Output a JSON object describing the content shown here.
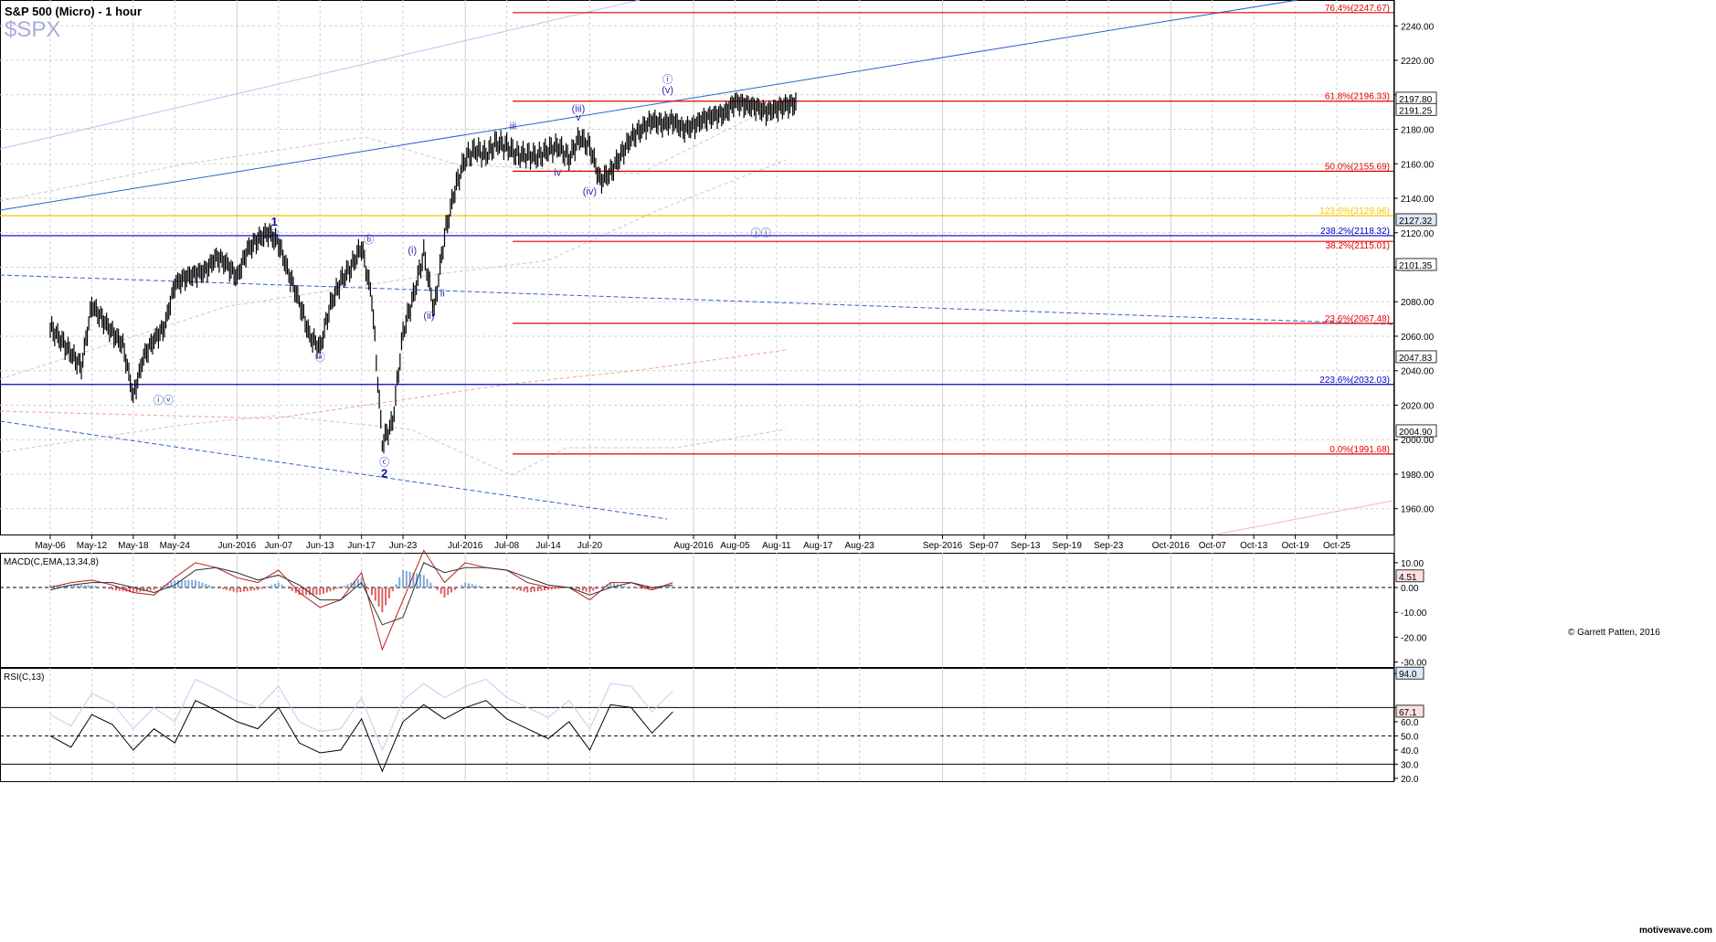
{
  "header": {
    "title": "S&P 500 (Micro) - 1 hour",
    "symbol": "$SPX"
  },
  "footer": {
    "copyright": "© Garrett Patten, 2016",
    "watermark": "motivewave.com"
  },
  "colors": {
    "grid": "#d0d0d0",
    "candle": "#000000",
    "fib_red": "#e00000",
    "fib_blue": "#0000cc",
    "fib_yellow": "#f0c800",
    "wave_label": "#2a2aaa",
    "trend_blue": "#3060d0",
    "macd_hist_pos": "#7fa8d8",
    "macd_hist_neg": "#e06060",
    "rsi_line": "#000000",
    "rsi_band": "#c8c8f0"
  },
  "chart_data": [
    {
      "type": "line",
      "panel": "price",
      "ylim": [
        1945,
        2255
      ],
      "y_ticks": [
        1960,
        1980,
        2000,
        2020,
        2040,
        2060,
        2080,
        2100,
        2120,
        2140,
        2160,
        2180,
        2200,
        2220,
        2240
      ],
      "y_tick_labels": [
        "1960.00",
        "1980.00",
        "2000.00",
        "2020.00",
        "2040.00",
        "2060.00",
        "2080.00",
        "2100.00",
        "2120.00",
        "2140.00",
        "2160.00",
        "2180.00",
        "2200.00",
        "2220.00",
        "2240.00"
      ],
      "x_dates": [
        "May-06",
        "May-12",
        "May-18",
        "May-24",
        "Jun-2016",
        "Jun-07",
        "Jun-13",
        "Jun-17",
        "Jun-23",
        "Jul-2016",
        "Jul-08",
        "Jul-14",
        "Jul-20",
        "Aug-2016",
        "Aug-05",
        "Aug-11",
        "Aug-17",
        "Aug-23",
        "Sep-2016",
        "Sep-07",
        "Sep-13",
        "Sep-19",
        "Sep-23",
        "Oct-2016",
        "Oct-07",
        "Oct-13",
        "Oct-19",
        "Oct-25"
      ],
      "x_day_index": [
        0,
        4,
        8,
        12,
        18,
        22,
        26,
        30,
        34,
        40,
        44,
        48,
        52,
        62,
        66,
        70,
        74,
        78,
        86,
        90,
        94,
        98,
        102,
        108,
        112,
        116,
        120,
        124
      ],
      "series": [
        {
          "x": [
            0,
            1,
            2,
            3,
            4,
            5,
            6,
            7,
            8,
            9,
            10,
            11,
            12,
            13,
            14,
            15,
            16,
            17,
            18,
            19,
            20,
            21,
            22,
            23,
            24,
            25,
            26,
            27,
            28,
            29,
            30,
            31,
            32,
            33,
            34,
            35,
            36,
            37,
            38,
            39,
            40,
            41,
            42,
            43,
            44,
            45,
            46,
            47,
            48,
            49,
            50,
            51,
            52,
            53,
            54,
            55,
            56,
            57,
            58,
            59,
            60,
            61,
            62,
            63,
            64,
            65,
            66,
            67,
            68,
            69,
            70,
            71,
            72
          ],
          "y": [
            2065,
            2058,
            2050,
            2042,
            2078,
            2070,
            2062,
            2055,
            2025,
            2048,
            2058,
            2065,
            2090,
            2094,
            2096,
            2098,
            2106,
            2102,
            2094,
            2110,
            2116,
            2120,
            2114,
            2096,
            2080,
            2060,
            2053,
            2078,
            2092,
            2100,
            2112,
            2082,
            1998,
            2010,
            2062,
            2083,
            2108,
            2075,
            2118,
            2145,
            2163,
            2168,
            2165,
            2172,
            2170,
            2165,
            2165,
            2164,
            2168,
            2170,
            2163,
            2175,
            2170,
            2150,
            2155,
            2165,
            2175,
            2180,
            2185,
            2183,
            2185,
            2180,
            2182,
            2186,
            2188,
            2189,
            2196,
            2194,
            2193,
            2190,
            2192,
            2194,
            2195
          ]
        }
      ],
      "fib_levels": [
        {
          "label": "76.4%(2247.67)",
          "value": 2247.67,
          "color": "red"
        },
        {
          "label": "61.8%(2196.33)",
          "value": 2196.33,
          "color": "red"
        },
        {
          "label": "50.0%(2155.69)",
          "value": 2155.69,
          "color": "red"
        },
        {
          "label": "123.6%(2129.96)",
          "value": 2129.96,
          "color": "yellow"
        },
        {
          "label": "238.2%(2118.32)",
          "value": 2118.32,
          "color": "blue"
        },
        {
          "label": "38.2%(2115.01)",
          "value": 2115.01,
          "color": "red"
        },
        {
          "label": "23.6%(2067.48)",
          "value": 2067.48,
          "color": "red"
        },
        {
          "label": "223.6%(2032.03)",
          "value": 2032.03,
          "color": "blue"
        },
        {
          "label": "0.0%(1991.68)",
          "value": 1991.68,
          "color": "red"
        }
      ],
      "price_markers": [
        {
          "label": "2197.80",
          "value": 2197.8,
          "style": "box"
        },
        {
          "label": "2191.25",
          "value": 2191.25,
          "style": "plain"
        },
        {
          "label": "2127.32",
          "value": 2127.32,
          "style": "highlight"
        },
        {
          "label": "2101.35",
          "value": 2101.35,
          "style": "plain"
        },
        {
          "label": "2047.83",
          "value": 2047.83,
          "style": "plain"
        },
        {
          "label": "2004.90",
          "value": 2004.9,
          "style": "plain"
        }
      ],
      "wave_labels": [
        {
          "text": "1",
          "x": 21.6,
          "y": 2124,
          "bold": true
        },
        {
          "text": "ⓥ",
          "x": 21.6,
          "y": 2117
        },
        {
          "text": "ⓘ",
          "x": 59.5,
          "y": 2207
        },
        {
          "text": "(v)",
          "x": 59.5,
          "y": 2201
        },
        {
          "text": "(iii)",
          "x": 50.9,
          "y": 2190
        },
        {
          "text": "v",
          "x": 50.9,
          "y": 2185
        },
        {
          "text": "iii",
          "x": 44.6,
          "y": 2180
        },
        {
          "text": "iv",
          "x": 48.9,
          "y": 2153
        },
        {
          "text": "(iv)",
          "x": 52.0,
          "y": 2142
        },
        {
          "text": "ⓑ",
          "x": 30.7,
          "y": 2114
        },
        {
          "text": "(i)",
          "x": 34.9,
          "y": 2108
        },
        {
          "text": "ii",
          "x": 37.8,
          "y": 2083
        },
        {
          "text": "(ii)",
          "x": 36.5,
          "y": 2070
        },
        {
          "text": "ⓐ",
          "x": 26.0,
          "y": 2046
        },
        {
          "text": "ⓘⓥ",
          "x": 10.9,
          "y": 2021
        },
        {
          "text": "ⓒ",
          "x": 32.2,
          "y": 1985
        },
        {
          "text": "2",
          "x": 32.2,
          "y": 1978,
          "bold": true
        },
        {
          "text": "ⓘⓘ",
          "x": 68.5,
          "y": 2118
        }
      ]
    },
    {
      "type": "line",
      "panel": "macd",
      "title": "MACD(C,EMA,13,34,8)",
      "ylim": [
        -32,
        14
      ],
      "y_ticks": [
        10,
        0,
        -10,
        -20,
        -30
      ],
      "y_tick_labels": [
        "10.00",
        "0.00",
        "-10.00",
        "-20.00",
        "-30.00"
      ],
      "current_value": "4.51",
      "series": [
        {
          "name": "MACD",
          "x": [
            0,
            2,
            4,
            6,
            8,
            10,
            12,
            14,
            16,
            18,
            20,
            22,
            24,
            26,
            28,
            30,
            32,
            34,
            36,
            38,
            40,
            42,
            44,
            46,
            48,
            50,
            52,
            54,
            56,
            58,
            60
          ],
          "y": [
            0,
            2,
            3,
            1,
            -2,
            -3,
            4,
            10,
            8,
            4,
            2,
            7,
            -2,
            -8,
            -5,
            6,
            -25,
            -5,
            15,
            2,
            10,
            8,
            7,
            2,
            0,
            0,
            -5,
            2,
            2,
            -1,
            2
          ]
        },
        {
          "name": "Signal",
          "x": [
            0,
            2,
            4,
            6,
            8,
            10,
            12,
            14,
            16,
            18,
            20,
            22,
            24,
            26,
            28,
            30,
            32,
            34,
            36,
            38,
            40,
            42,
            44,
            46,
            48,
            50,
            52,
            54,
            56,
            58,
            60
          ],
          "y": [
            -1,
            1,
            2,
            2,
            0,
            -2,
            1,
            7,
            8,
            6,
            3,
            5,
            1,
            -5,
            -5,
            2,
            -15,
            -12,
            10,
            6,
            8,
            8,
            7,
            4,
            1,
            0,
            -3,
            0,
            2,
            0,
            1
          ]
        }
      ]
    },
    {
      "type": "line",
      "panel": "rsi",
      "title": "RSI(C,13)",
      "ylim": [
        18,
        98
      ],
      "y_ticks": [
        94,
        70,
        60,
        50,
        40,
        30,
        20
      ],
      "y_tick_labels": [
        "94.0",
        "70.0",
        "60.0",
        "50.0",
        "40.0",
        "30.0",
        "20.0"
      ],
      "current_value": "67.1",
      "levels": [
        70,
        50,
        30
      ],
      "series": [
        {
          "name": "RSI",
          "x": [
            0,
            2,
            4,
            6,
            8,
            10,
            12,
            14,
            16,
            18,
            20,
            22,
            24,
            26,
            28,
            30,
            32,
            34,
            36,
            38,
            40,
            42,
            44,
            46,
            48,
            50,
            52,
            54,
            56,
            58,
            60
          ],
          "y": [
            50,
            42,
            65,
            58,
            40,
            55,
            45,
            75,
            68,
            60,
            55,
            70,
            45,
            38,
            40,
            62,
            25,
            60,
            72,
            62,
            70,
            75,
            62,
            55,
            48,
            60,
            40,
            72,
            70,
            52,
            67
          ]
        }
      ]
    }
  ]
}
